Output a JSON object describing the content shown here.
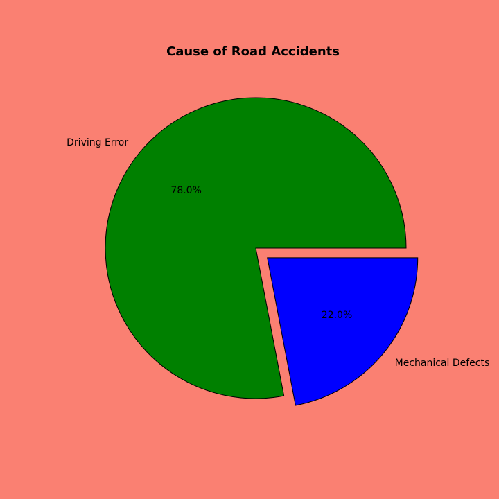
{
  "chart_data": {
    "type": "pie",
    "title": "Cause of Road Accidents",
    "categories": [
      "Driving Error",
      "Mechanical Defects"
    ],
    "values": [
      78.0,
      22.0
    ],
    "percent_labels": [
      "78.0%",
      "22.0%"
    ],
    "colors": [
      "#008000",
      "#0000ff"
    ],
    "exploded": [
      false,
      true
    ],
    "start_angle_deg": 0,
    "direction": "counterclockwise"
  },
  "colors": {
    "background": "#fa8072"
  }
}
